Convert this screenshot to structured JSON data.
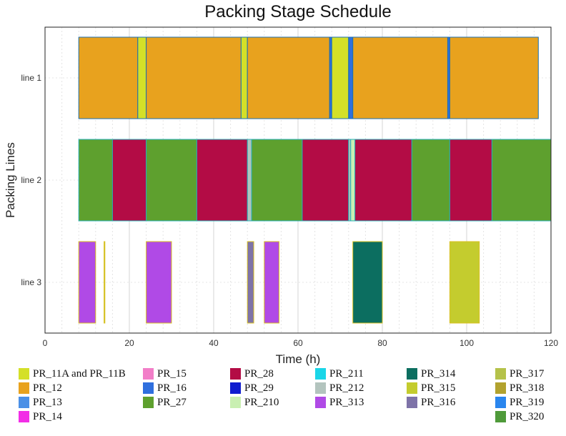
{
  "chart_data": {
    "type": "gantt",
    "title": "Packing Stage Schedule",
    "xlabel": "Time (h)",
    "ylabel": "Packing Lines",
    "xlim": [
      0,
      120
    ],
    "xticks": [
      0,
      20,
      40,
      60,
      80,
      100,
      120
    ],
    "grid": true,
    "lines": [
      "line 1",
      "line 2",
      "line 3"
    ],
    "legend": [
      {
        "label": "PR_11A and PR_11B",
        "color": "#d4e028"
      },
      {
        "label": "PR_12",
        "color": "#e8a21e"
      },
      {
        "label": "PR_13",
        "color": "#4b90e6"
      },
      {
        "label": "PR_14",
        "color": "#f22ee6"
      },
      {
        "label": "PR_15",
        "color": "#f27ec8"
      },
      {
        "label": "PR_16",
        "color": "#2f6fde"
      },
      {
        "label": "PR_27",
        "color": "#5ea02e"
      },
      {
        "label": "PR_28",
        "color": "#b30c45"
      },
      {
        "label": "PR_29",
        "color": "#0f1ccf"
      },
      {
        "label": "PR_210",
        "color": "#c9efb2"
      },
      {
        "label": "PR_211",
        "color": "#1ad6e8"
      },
      {
        "label": "PR_212",
        "color": "#b3c4be"
      },
      {
        "label": "PR_313",
        "color": "#b04ae6"
      },
      {
        "label": "PR_314",
        "color": "#0c6e60"
      },
      {
        "label": "PR_315",
        "color": "#c4cc2e"
      },
      {
        "label": "PR_316",
        "color": "#7e73a8"
      },
      {
        "label": "PR_317",
        "color": "#b5c24a"
      },
      {
        "label": "PR_318",
        "color": "#b2a22e"
      },
      {
        "label": "PR_319",
        "color": "#2a86ee"
      },
      {
        "label": "PR_320",
        "color": "#4f9a3a"
      }
    ],
    "tasks": [
      {
        "line": 0,
        "start": 8.0,
        "end": 22.0,
        "product": "PR_12"
      },
      {
        "line": 0,
        "start": 22.0,
        "end": 24.0,
        "product": "PR_11A and PR_11B"
      },
      {
        "line": 0,
        "start": 24.0,
        "end": 46.5,
        "product": "PR_12"
      },
      {
        "line": 0,
        "start": 46.5,
        "end": 48.0,
        "product": "PR_11A and PR_11B"
      },
      {
        "line": 0,
        "start": 48.0,
        "end": 67.5,
        "product": "PR_12"
      },
      {
        "line": 0,
        "start": 67.5,
        "end": 68.0,
        "product": "PR_16"
      },
      {
        "line": 0,
        "start": 68.0,
        "end": 72.0,
        "product": "PR_11A and PR_11B"
      },
      {
        "line": 0,
        "start": 72.0,
        "end": 73.0,
        "product": "PR_16"
      },
      {
        "line": 0,
        "start": 73.0,
        "end": 95.5,
        "product": "PR_12"
      },
      {
        "line": 0,
        "start": 95.5,
        "end": 96.0,
        "product": "PR_16"
      },
      {
        "line": 0,
        "start": 96.0,
        "end": 117.0,
        "product": "PR_12"
      },
      {
        "line": 1,
        "start": 8.0,
        "end": 16.0,
        "product": "PR_27"
      },
      {
        "line": 1,
        "start": 16.0,
        "end": 24.0,
        "product": "PR_28"
      },
      {
        "line": 1,
        "start": 24.0,
        "end": 36.0,
        "product": "PR_27"
      },
      {
        "line": 1,
        "start": 36.0,
        "end": 48.0,
        "product": "PR_28"
      },
      {
        "line": 1,
        "start": 48.0,
        "end": 49.0,
        "product": "PR_212"
      },
      {
        "line": 1,
        "start": 49.0,
        "end": 61.0,
        "product": "PR_27"
      },
      {
        "line": 1,
        "start": 61.0,
        "end": 72.0,
        "product": "PR_28"
      },
      {
        "line": 1,
        "start": 72.0,
        "end": 72.5,
        "product": "PR_212"
      },
      {
        "line": 1,
        "start": 72.5,
        "end": 73.5,
        "product": "PR_210"
      },
      {
        "line": 1,
        "start": 73.5,
        "end": 87.0,
        "product": "PR_28"
      },
      {
        "line": 1,
        "start": 87.0,
        "end": 96.0,
        "product": "PR_27"
      },
      {
        "line": 1,
        "start": 96.0,
        "end": 106.0,
        "product": "PR_28"
      },
      {
        "line": 1,
        "start": 106.0,
        "end": 120.0,
        "product": "PR_27"
      },
      {
        "line": 2,
        "start": 8.0,
        "end": 12.0,
        "product": "PR_313"
      },
      {
        "line": 2,
        "start": 14.0,
        "end": 14.2,
        "product": "PR_315"
      },
      {
        "line": 2,
        "start": 24.0,
        "end": 30.0,
        "product": "PR_313"
      },
      {
        "line": 2,
        "start": 48.0,
        "end": 49.5,
        "product": "PR_316"
      },
      {
        "line": 2,
        "start": 52.0,
        "end": 55.5,
        "product": "PR_313"
      },
      {
        "line": 2,
        "start": 73.0,
        "end": 80.0,
        "product": "PR_314"
      },
      {
        "line": 2,
        "start": 96.0,
        "end": 103.0,
        "product": "PR_315"
      }
    ]
  }
}
